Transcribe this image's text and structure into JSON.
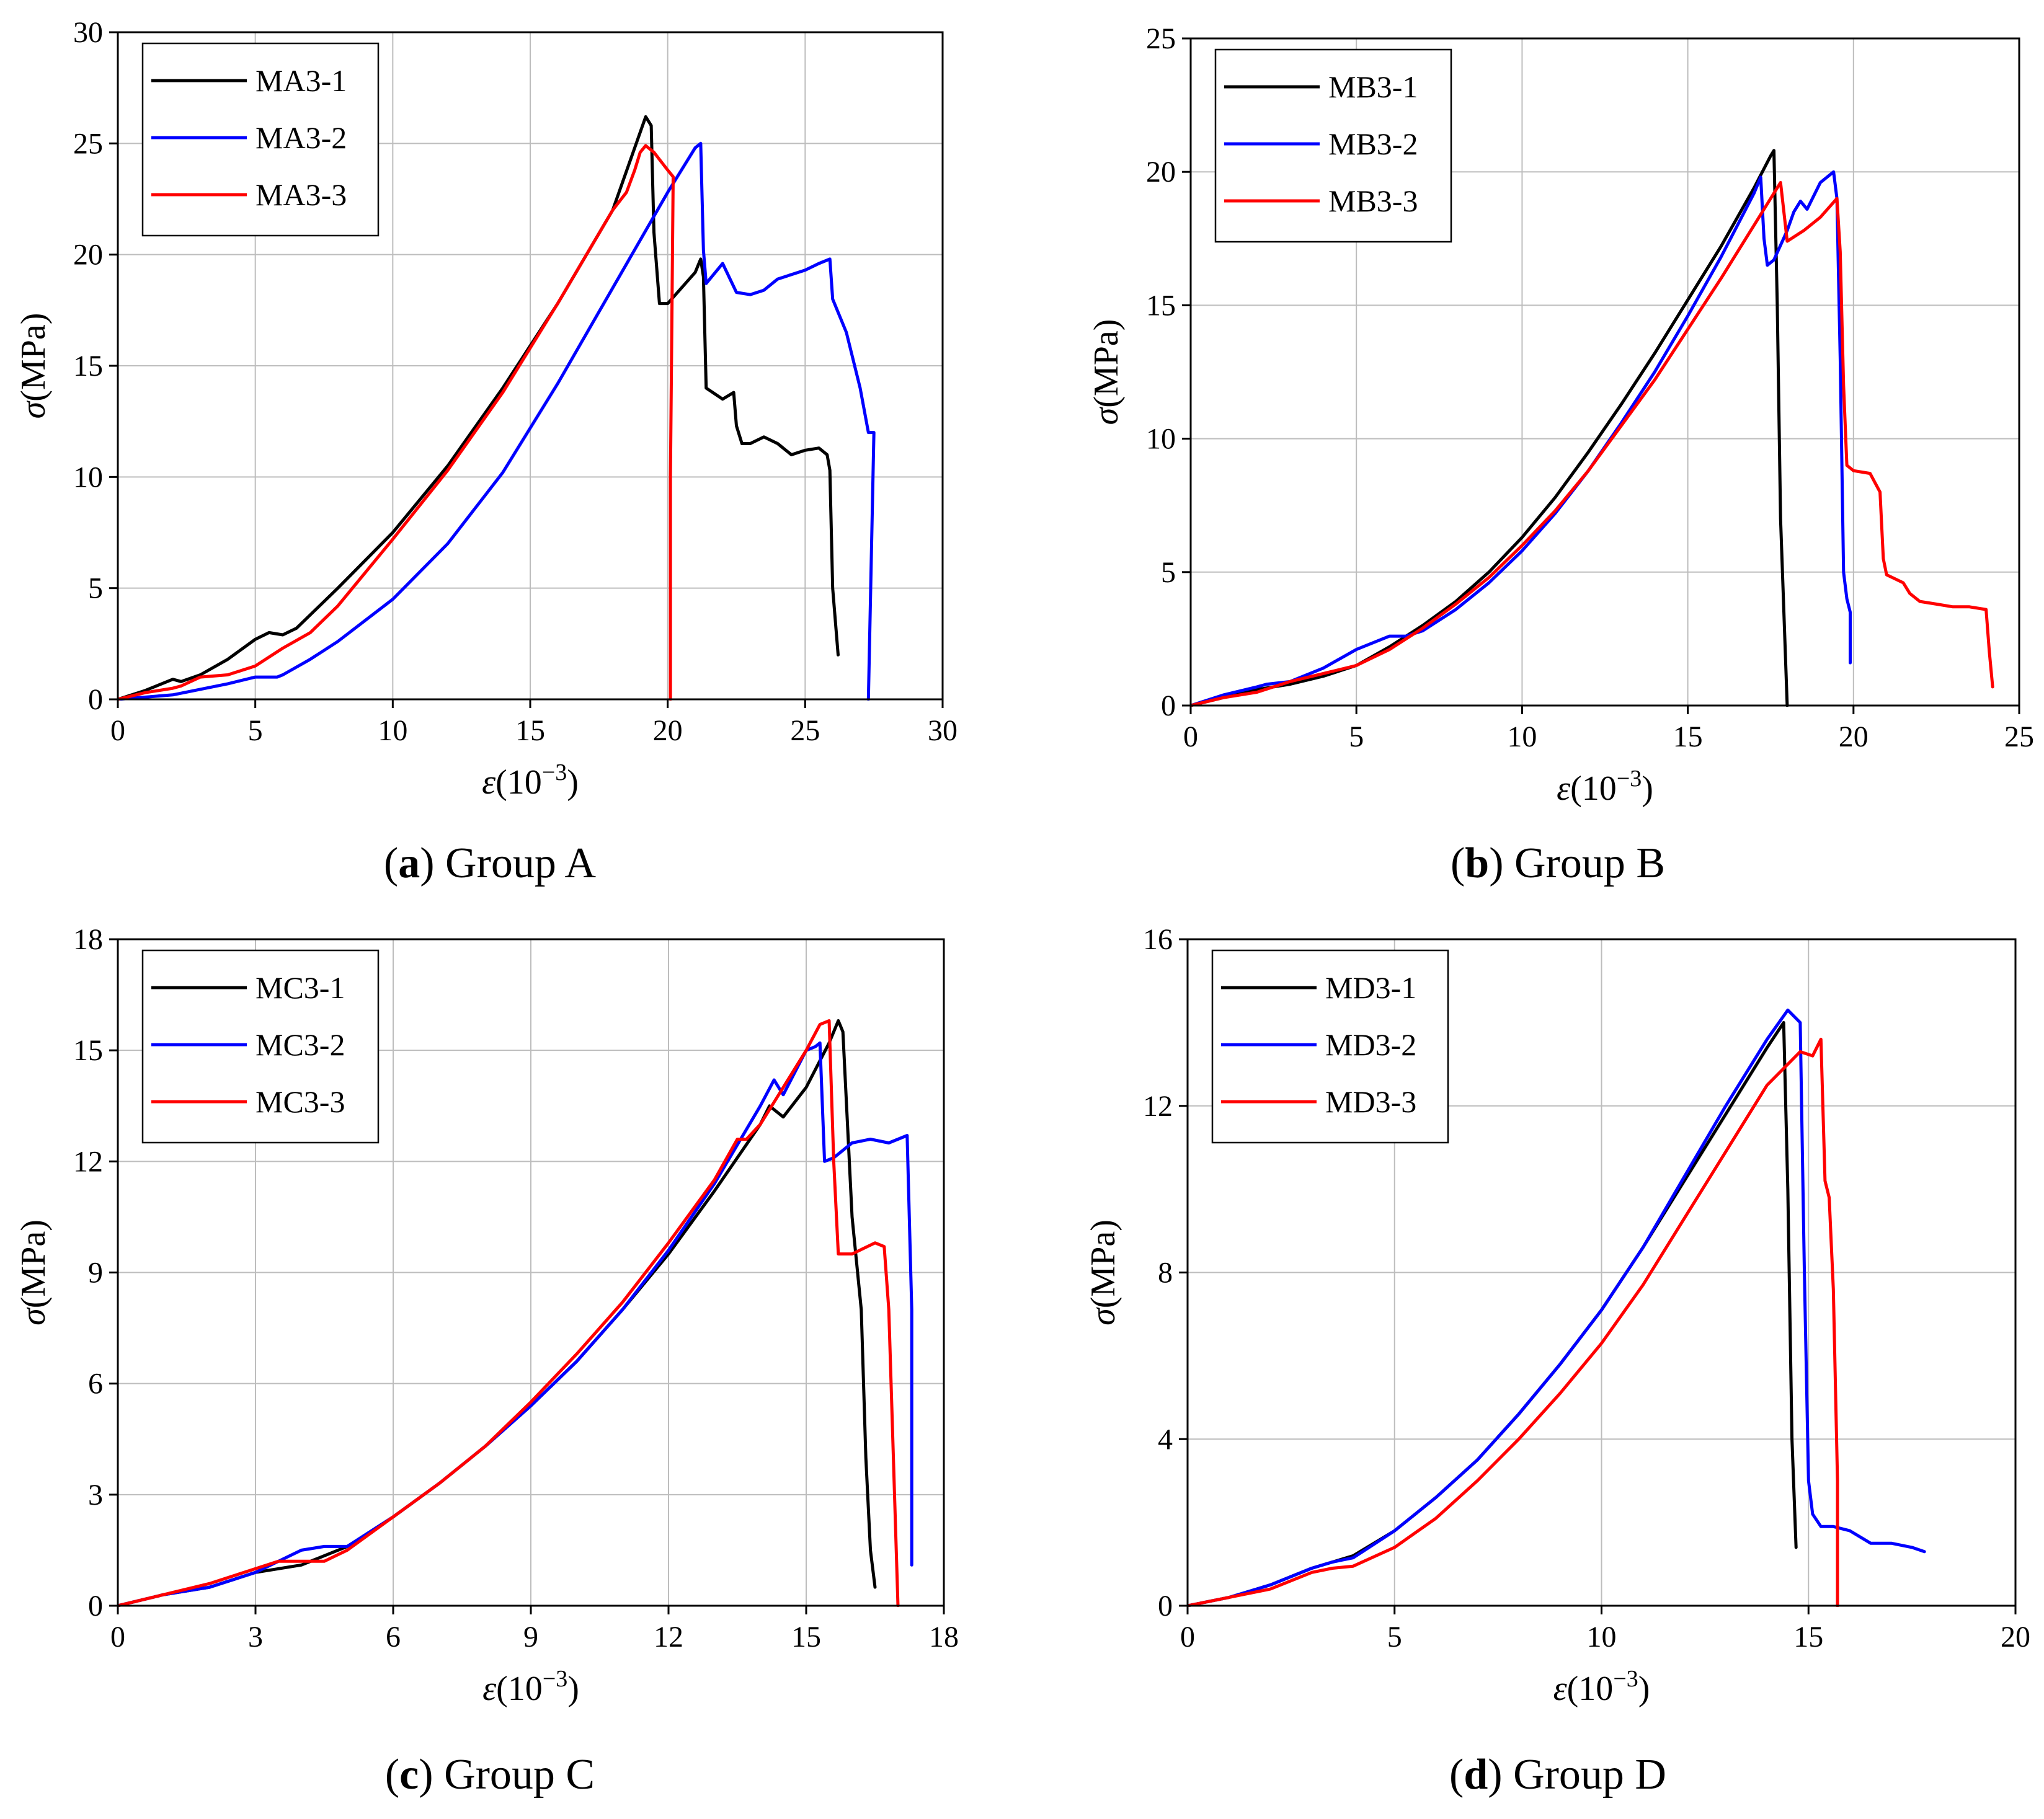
{
  "chart_data": [
    {
      "type": "line",
      "caption_letter": "a",
      "caption_text": " Group A",
      "xlabel": "ε",
      "xunit": "(10",
      "xexp": "−3",
      "xclose": ")",
      "ylabel": "σ",
      "yunit": "(MPa)",
      "xlim": [
        0,
        30
      ],
      "ylim": [
        0,
        30
      ],
      "xticks": [
        0,
        5,
        10,
        15,
        20,
        25,
        30
      ],
      "yticks": [
        0,
        5,
        10,
        15,
        20,
        25,
        30
      ],
      "grid": true,
      "legend": "top-left",
      "series": [
        {
          "name": "MA3-1",
          "color": "#000000",
          "x": [
            0,
            1,
            2,
            2.3,
            3,
            4,
            5,
            5.5,
            6,
            6.5,
            8,
            10,
            12,
            14,
            16,
            18,
            19,
            19.2,
            19.4,
            19.5,
            19.7,
            20,
            20.5,
            21,
            21.2,
            21.3,
            21.4,
            22,
            22.4,
            22.5,
            22.7,
            23,
            23.5,
            24,
            24.5,
            25,
            25.5,
            25.8,
            25.9,
            26,
            26.2
          ],
          "y": [
            0,
            0.4,
            0.9,
            0.8,
            1.1,
            1.8,
            2.7,
            3,
            2.9,
            3.2,
            5,
            7.5,
            10.5,
            14,
            17.8,
            22,
            25.5,
            26.2,
            25.8,
            21,
            17.8,
            17.8,
            18.5,
            19.2,
            19.8,
            19,
            14,
            13.5,
            13.8,
            12.3,
            11.5,
            11.5,
            11.8,
            11.5,
            11,
            11.2,
            11.3,
            11,
            10.3,
            5,
            2
          ]
        },
        {
          "name": "MA3-2",
          "color": "#0000ff",
          "x": [
            0,
            2,
            4,
            5,
            5.8,
            6,
            7,
            8,
            10,
            12,
            14,
            16,
            18,
            20,
            21,
            21.2,
            21.3,
            21.4,
            22,
            22.5,
            23,
            23.5,
            24,
            25,
            25.5,
            25.9,
            26,
            26.5,
            27,
            27.3,
            27.5,
            27.3
          ],
          "y": [
            0,
            0.2,
            0.7,
            1,
            1,
            1.1,
            1.8,
            2.6,
            4.5,
            7,
            10.2,
            14.2,
            18.5,
            22.8,
            24.8,
            25,
            20.2,
            18.7,
            19.6,
            18.3,
            18.2,
            18.4,
            18.9,
            19.3,
            19.6,
            19.8,
            18,
            16.5,
            14,
            12,
            12,
            0
          ]
        },
        {
          "name": "MA3-3",
          "color": "#ff0000",
          "x": [
            0,
            1,
            2,
            2.3,
            3,
            4,
            5,
            6,
            7,
            8,
            10,
            12,
            14,
            16,
            18,
            18.5,
            18.8,
            19,
            19.2,
            19.5,
            20,
            20.2,
            20.1,
            20.1
          ],
          "y": [
            0,
            0.3,
            0.5,
            0.6,
            1,
            1.1,
            1.5,
            2.3,
            3,
            4.2,
            7.2,
            10.3,
            13.8,
            17.8,
            22,
            22.8,
            23.8,
            24.6,
            24.9,
            24.6,
            23.8,
            23.5,
            10,
            0
          ]
        }
      ]
    },
    {
      "type": "line",
      "caption_letter": "b",
      "caption_text": " Group B",
      "xlabel": "ε",
      "xunit": "(10",
      "xexp": "−3",
      "xclose": ")",
      "ylabel": "σ",
      "yunit": "(MPa)",
      "xlim": [
        0,
        25
      ],
      "ylim": [
        0,
        25
      ],
      "xticks": [
        0,
        5,
        10,
        15,
        20,
        25
      ],
      "yticks": [
        0,
        5,
        10,
        15,
        20,
        25
      ],
      "grid": true,
      "legend": "top-left",
      "series": [
        {
          "name": "MB3-1",
          "color": "#000000",
          "x": [
            0,
            1,
            2,
            3,
            4,
            5,
            6,
            7,
            8,
            9,
            10,
            11,
            12,
            13,
            14,
            15,
            16,
            17,
            17.5,
            17.6,
            17.7,
            17.8,
            18
          ],
          "y": [
            0,
            0.3,
            0.6,
            0.8,
            1.1,
            1.5,
            2.2,
            3,
            3.9,
            5,
            6.3,
            7.8,
            9.5,
            11.3,
            13.2,
            15.2,
            17.2,
            19.4,
            20.6,
            20.8,
            15,
            7,
            0
          ]
        },
        {
          "name": "MB3-2",
          "color": "#0000ff",
          "x": [
            0,
            1,
            2,
            2.3,
            3,
            4,
            5,
            6,
            6.5,
            7,
            8,
            9,
            10,
            11,
            12,
            13,
            14,
            15,
            16,
            17,
            17.2,
            17.3,
            17.4,
            17.6,
            18,
            18.2,
            18.4,
            18.6,
            19,
            19.4,
            19.5,
            19.6,
            19.7,
            19.8,
            19.9,
            19.9
          ],
          "y": [
            0,
            0.4,
            0.7,
            0.8,
            0.9,
            1.4,
            2.1,
            2.6,
            2.6,
            2.8,
            3.6,
            4.6,
            5.8,
            7.2,
            8.8,
            10.6,
            12.5,
            14.6,
            16.8,
            19.2,
            19.8,
            17.5,
            16.5,
            16.7,
            17.8,
            18.5,
            18.9,
            18.6,
            19.6,
            20,
            19,
            13,
            5,
            4,
            3.5,
            1.6
          ]
        },
        {
          "name": "MB3-3",
          "color": "#ff0000",
          "x": [
            0,
            1,
            2,
            3,
            4,
            5,
            6,
            7,
            8,
            9,
            10,
            11,
            12,
            13,
            14,
            15,
            16,
            17,
            17.5,
            17.8,
            18,
            18.5,
            19,
            19.5,
            19.6,
            19.7,
            19.8,
            20,
            20.5,
            20.8,
            20.9,
            21,
            21.5,
            21.7,
            22,
            22.5,
            23,
            23.5,
            24,
            24.1,
            24.2
          ],
          "y": [
            0,
            0.3,
            0.5,
            0.9,
            1.2,
            1.5,
            2.1,
            2.9,
            3.8,
            4.8,
            6,
            7.3,
            8.8,
            10.5,
            12.2,
            14.1,
            16,
            18,
            19,
            19.6,
            17.4,
            17.8,
            18.3,
            19,
            17,
            12,
            9,
            8.8,
            8.7,
            8,
            5.5,
            4.9,
            4.6,
            4.2,
            3.9,
            3.8,
            3.7,
            3.7,
            3.6,
            2,
            0.7
          ]
        }
      ]
    },
    {
      "type": "line",
      "caption_letter": "c",
      "caption_text": " Group C",
      "xlabel": "ε",
      "xunit": "(10",
      "xexp": "−3",
      "xclose": ")",
      "ylabel": "σ",
      "yunit": "(MPa)",
      "xlim": [
        0,
        18
      ],
      "ylim": [
        0,
        18
      ],
      "xticks": [
        0,
        3,
        6,
        9,
        12,
        15,
        18
      ],
      "yticks": [
        0,
        3,
        6,
        9,
        12,
        15,
        18
      ],
      "grid": true,
      "legend": "top-left",
      "series": [
        {
          "name": "MC3-1",
          "color": "#000000",
          "x": [
            0,
            1,
            2,
            3,
            3.5,
            4,
            5,
            6,
            7,
            8,
            9,
            10,
            11,
            12,
            13,
            14,
            14.2,
            14.5,
            15,
            15.5,
            15.7,
            15.8,
            16,
            16.2,
            16.3,
            16.4,
            16.5
          ],
          "y": [
            0,
            0.3,
            0.5,
            0.9,
            1,
            1.1,
            1.6,
            2.4,
            3.3,
            4.3,
            5.4,
            6.6,
            8,
            9.5,
            11.2,
            13,
            13.5,
            13.2,
            14,
            15.2,
            15.8,
            15.5,
            10.5,
            8,
            4,
            1.5,
            0.5
          ]
        },
        {
          "name": "MC3-2",
          "color": "#0000ff",
          "x": [
            0,
            1,
            1.5,
            2,
            3,
            4,
            4.5,
            5,
            6,
            7,
            8,
            9,
            10,
            11,
            12,
            13,
            14,
            14.3,
            14.4,
            14.5,
            15,
            15.2,
            15.3,
            15.4,
            15.6,
            16,
            16.4,
            16.8,
            17.2,
            17.3,
            17.3
          ],
          "y": [
            0,
            0.3,
            0.4,
            0.5,
            0.9,
            1.5,
            1.6,
            1.6,
            2.4,
            3.3,
            4.3,
            5.4,
            6.6,
            8,
            9.6,
            11.4,
            13.5,
            14.2,
            14,
            13.8,
            15,
            15.1,
            15.2,
            12,
            12.1,
            12.5,
            12.6,
            12.5,
            12.7,
            8,
            1.1
          ]
        },
        {
          "name": "MC3-3",
          "color": "#ff0000",
          "x": [
            0,
            1,
            2,
            3,
            3.5,
            4,
            4.5,
            5,
            6,
            7,
            8,
            9,
            10,
            11,
            12,
            13,
            13.5,
            13.7,
            14,
            14.5,
            15,
            15.3,
            15.5,
            15.6,
            15.7,
            16,
            16.5,
            16.7,
            16.8,
            16.9,
            17
          ],
          "y": [
            0,
            0.3,
            0.6,
            1,
            1.2,
            1.2,
            1.2,
            1.5,
            2.4,
            3.3,
            4.3,
            5.5,
            6.8,
            8.2,
            9.8,
            11.5,
            12.6,
            12.6,
            13,
            14,
            15,
            15.7,
            15.8,
            12,
            9.5,
            9.5,
            9.8,
            9.7,
            8,
            4,
            0
          ]
        }
      ]
    },
    {
      "type": "line",
      "caption_letter": "d",
      "caption_text": " Group D",
      "xlabel": "ε",
      "xunit": "(10",
      "xexp": "−3",
      "xclose": ")",
      "ylabel": "σ",
      "yunit": "(MPa)",
      "xlim": [
        0,
        20
      ],
      "ylim": [
        0,
        16
      ],
      "xticks": [
        0,
        5,
        10,
        15,
        20
      ],
      "yticks": [
        0,
        4,
        8,
        12,
        16
      ],
      "grid": true,
      "legend": "top-left",
      "series": [
        {
          "name": "MD3-1",
          "color": "#000000",
          "x": [
            0,
            1,
            2,
            3,
            3.5,
            4,
            5,
            6,
            7,
            8,
            9,
            10,
            11,
            12,
            13,
            14,
            14.4,
            14.5,
            14.6,
            14.7
          ],
          "y": [
            0,
            0.2,
            0.5,
            0.9,
            1.05,
            1.2,
            1.8,
            2.6,
            3.5,
            4.6,
            5.8,
            7.1,
            8.6,
            10.2,
            11.8,
            13.4,
            14,
            10,
            4,
            1.4
          ]
        },
        {
          "name": "MD3-2",
          "color": "#0000ff",
          "x": [
            0,
            1,
            2,
            3,
            3.5,
            4,
            5,
            6,
            7,
            8,
            9,
            10,
            11,
            12,
            13,
            14,
            14.5,
            14.8,
            14.9,
            15,
            15.1,
            15.3,
            15.6,
            16,
            16.5,
            17,
            17.5,
            17.8
          ],
          "y": [
            0,
            0.2,
            0.5,
            0.9,
            1.05,
            1.15,
            1.8,
            2.6,
            3.5,
            4.6,
            5.8,
            7.1,
            8.6,
            10.3,
            12,
            13.6,
            14.3,
            14,
            8,
            3,
            2.2,
            1.9,
            1.9,
            1.8,
            1.5,
            1.5,
            1.4,
            1.3
          ]
        },
        {
          "name": "MD3-3",
          "color": "#ff0000",
          "x": [
            0,
            1,
            2,
            3,
            3.5,
            4,
            5,
            6,
            7,
            8,
            9,
            10,
            11,
            12,
            13,
            14,
            14.8,
            15.1,
            15.3,
            15.4,
            15.5,
            15.6,
            15.7,
            15.7
          ],
          "y": [
            0,
            0.2,
            0.4,
            0.8,
            0.9,
            0.95,
            1.4,
            2.1,
            3,
            4,
            5.1,
            6.3,
            7.7,
            9.3,
            10.9,
            12.5,
            13.3,
            13.2,
            13.6,
            10.2,
            9.8,
            7.6,
            3,
            0
          ]
        }
      ]
    }
  ]
}
